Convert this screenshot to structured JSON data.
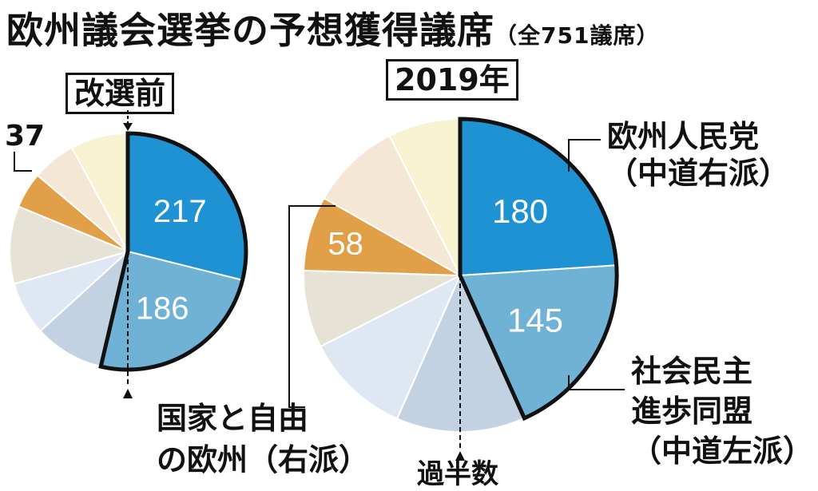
{
  "title": "欧州議会選挙の予想獲得議席",
  "subtitle": "（全751議席）",
  "chart_data": [
    {
      "type": "pie",
      "title": "改選前",
      "slices": [
        {
          "value": 217,
          "label": "217",
          "color": "#1e92d2"
        },
        {
          "value": 186,
          "label": "186",
          "color": "#6fb2d6"
        },
        {
          "value": 72,
          "color": "#c3d2e2"
        },
        {
          "value": 55,
          "color": "#dfe8f2"
        },
        {
          "value": 80,
          "color": "#e6e2d6"
        },
        {
          "value": 37,
          "label": "37",
          "color": "#e19f48"
        },
        {
          "value": 45,
          "color": "#f4e7d6"
        },
        {
          "value": 59,
          "color": "#f7f2d2"
        }
      ]
    },
    {
      "type": "pie",
      "title": "2019年",
      "slices": [
        {
          "value": 180,
          "label": "180",
          "color": "#1e92d2"
        },
        {
          "value": 145,
          "label": "145",
          "color": "#6fb2d6"
        },
        {
          "value": 100,
          "color": "#c3d2e2"
        },
        {
          "value": 82,
          "color": "#dfe8f2"
        },
        {
          "value": 60,
          "color": "#e6e2d6"
        },
        {
          "value": 58,
          "label": "58",
          "color": "#e19f48"
        },
        {
          "value": 70,
          "color": "#f4e7d6"
        },
        {
          "value": 56,
          "color": "#f7f2d2"
        }
      ]
    }
  ],
  "annotations": {
    "epp_line1": "欧州人民党",
    "epp_line2": "（中道右派）",
    "sd_line1": "社会民主",
    "sd_line2": "進歩同盟",
    "sd_line3": "（中道左派）",
    "enf_line1": "国家と自由",
    "enf_line2": "の欧州（右派）",
    "majority": "過半数"
  }
}
